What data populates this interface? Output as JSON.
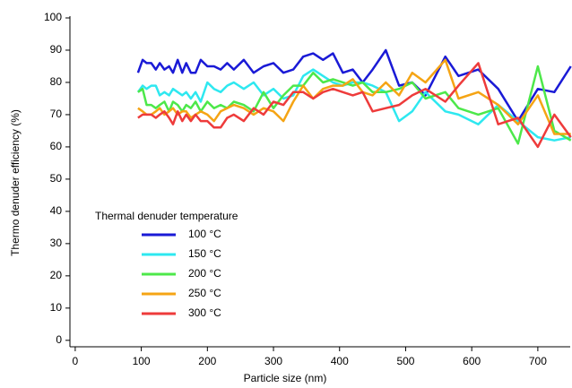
{
  "chart_data": {
    "type": "line",
    "xlabel": "Particle size (nm)",
    "ylabel": "Thermo denuder efficiency (%)",
    "legend_title": "Thermal denuder temperature",
    "legend": "center left",
    "x": [
      95,
      102,
      108,
      115,
      122,
      128,
      135,
      142,
      148,
      155,
      162,
      168,
      175,
      182,
      190,
      200,
      210,
      220,
      230,
      240,
      255,
      270,
      285,
      300,
      315,
      330,
      345,
      360,
      375,
      390,
      405,
      420,
      435,
      450,
      470,
      490,
      510,
      530,
      560,
      580,
      610,
      640,
      670,
      700,
      725,
      750
    ],
    "series": [
      {
        "name": "100 °C",
        "color": "#1a1ad6",
        "values": [
          83,
          87,
          86,
          86,
          84,
          86,
          84,
          85,
          83,
          87,
          83,
          86,
          83,
          83,
          87,
          85,
          85,
          84,
          86,
          84,
          87,
          83,
          85,
          86,
          83,
          84,
          88,
          89,
          87,
          89,
          83,
          84,
          80,
          84,
          90,
          79,
          80,
          76,
          88,
          82,
          84,
          78,
          68,
          78,
          77,
          85
        ]
      },
      {
        "name": "150 °C",
        "color": "#2ee8f0",
        "values": [
          77,
          79,
          78,
          79,
          79,
          76,
          77,
          76,
          78,
          77,
          76,
          77,
          75,
          77,
          74,
          80,
          78,
          77,
          79,
          80,
          78,
          80,
          76,
          78,
          75,
          76,
          82,
          84,
          82,
          80,
          79,
          80,
          80,
          79,
          77,
          68,
          71,
          77,
          71,
          70,
          67,
          73,
          68,
          63,
          62,
          63
        ]
      },
      {
        "name": "200 °C",
        "color": "#4de84a",
        "values": [
          77,
          78,
          73,
          73,
          72,
          73,
          74,
          71,
          74,
          73,
          71,
          73,
          72,
          74,
          71,
          74,
          72,
          73,
          72,
          74,
          73,
          71,
          77,
          72,
          76,
          79,
          79,
          83,
          80,
          81,
          80,
          79,
          80,
          77,
          77,
          78,
          80,
          75,
          77,
          72,
          70,
          72,
          61,
          85,
          65,
          62
        ]
      },
      {
        "name": "250 °C",
        "color": "#f5a414",
        "values": [
          72,
          71,
          70,
          70,
          71,
          72,
          70,
          71,
          72,
          70,
          71,
          71,
          69,
          70,
          71,
          70,
          68,
          71,
          72,
          73,
          72,
          70,
          72,
          71,
          68,
          74,
          79,
          75,
          78,
          79,
          79,
          81,
          77,
          76,
          80,
          76,
          83,
          80,
          87,
          75,
          77,
          73,
          67,
          76,
          64,
          64
        ]
      },
      {
        "name": "300 °C",
        "color": "#ee3b3b",
        "values": [
          69,
          70,
          70,
          70,
          69,
          70,
          71,
          69,
          67,
          71,
          68,
          70,
          68,
          70,
          68,
          68,
          66,
          66,
          69,
          70,
          68,
          72,
          70,
          74,
          73,
          77,
          77,
          75,
          77,
          78,
          77,
          76,
          77,
          71,
          72,
          73,
          76,
          78,
          74,
          79,
          86,
          67,
          69,
          60,
          70,
          63
        ]
      }
    ],
    "xlim": [
      -8,
      749
    ],
    "ylim": [
      -2,
      100
    ],
    "xticks": [
      0,
      100,
      200,
      300,
      400,
      500,
      600,
      700
    ],
    "yticks": [
      0,
      10,
      20,
      30,
      40,
      50,
      60,
      70,
      80,
      90,
      100
    ]
  }
}
